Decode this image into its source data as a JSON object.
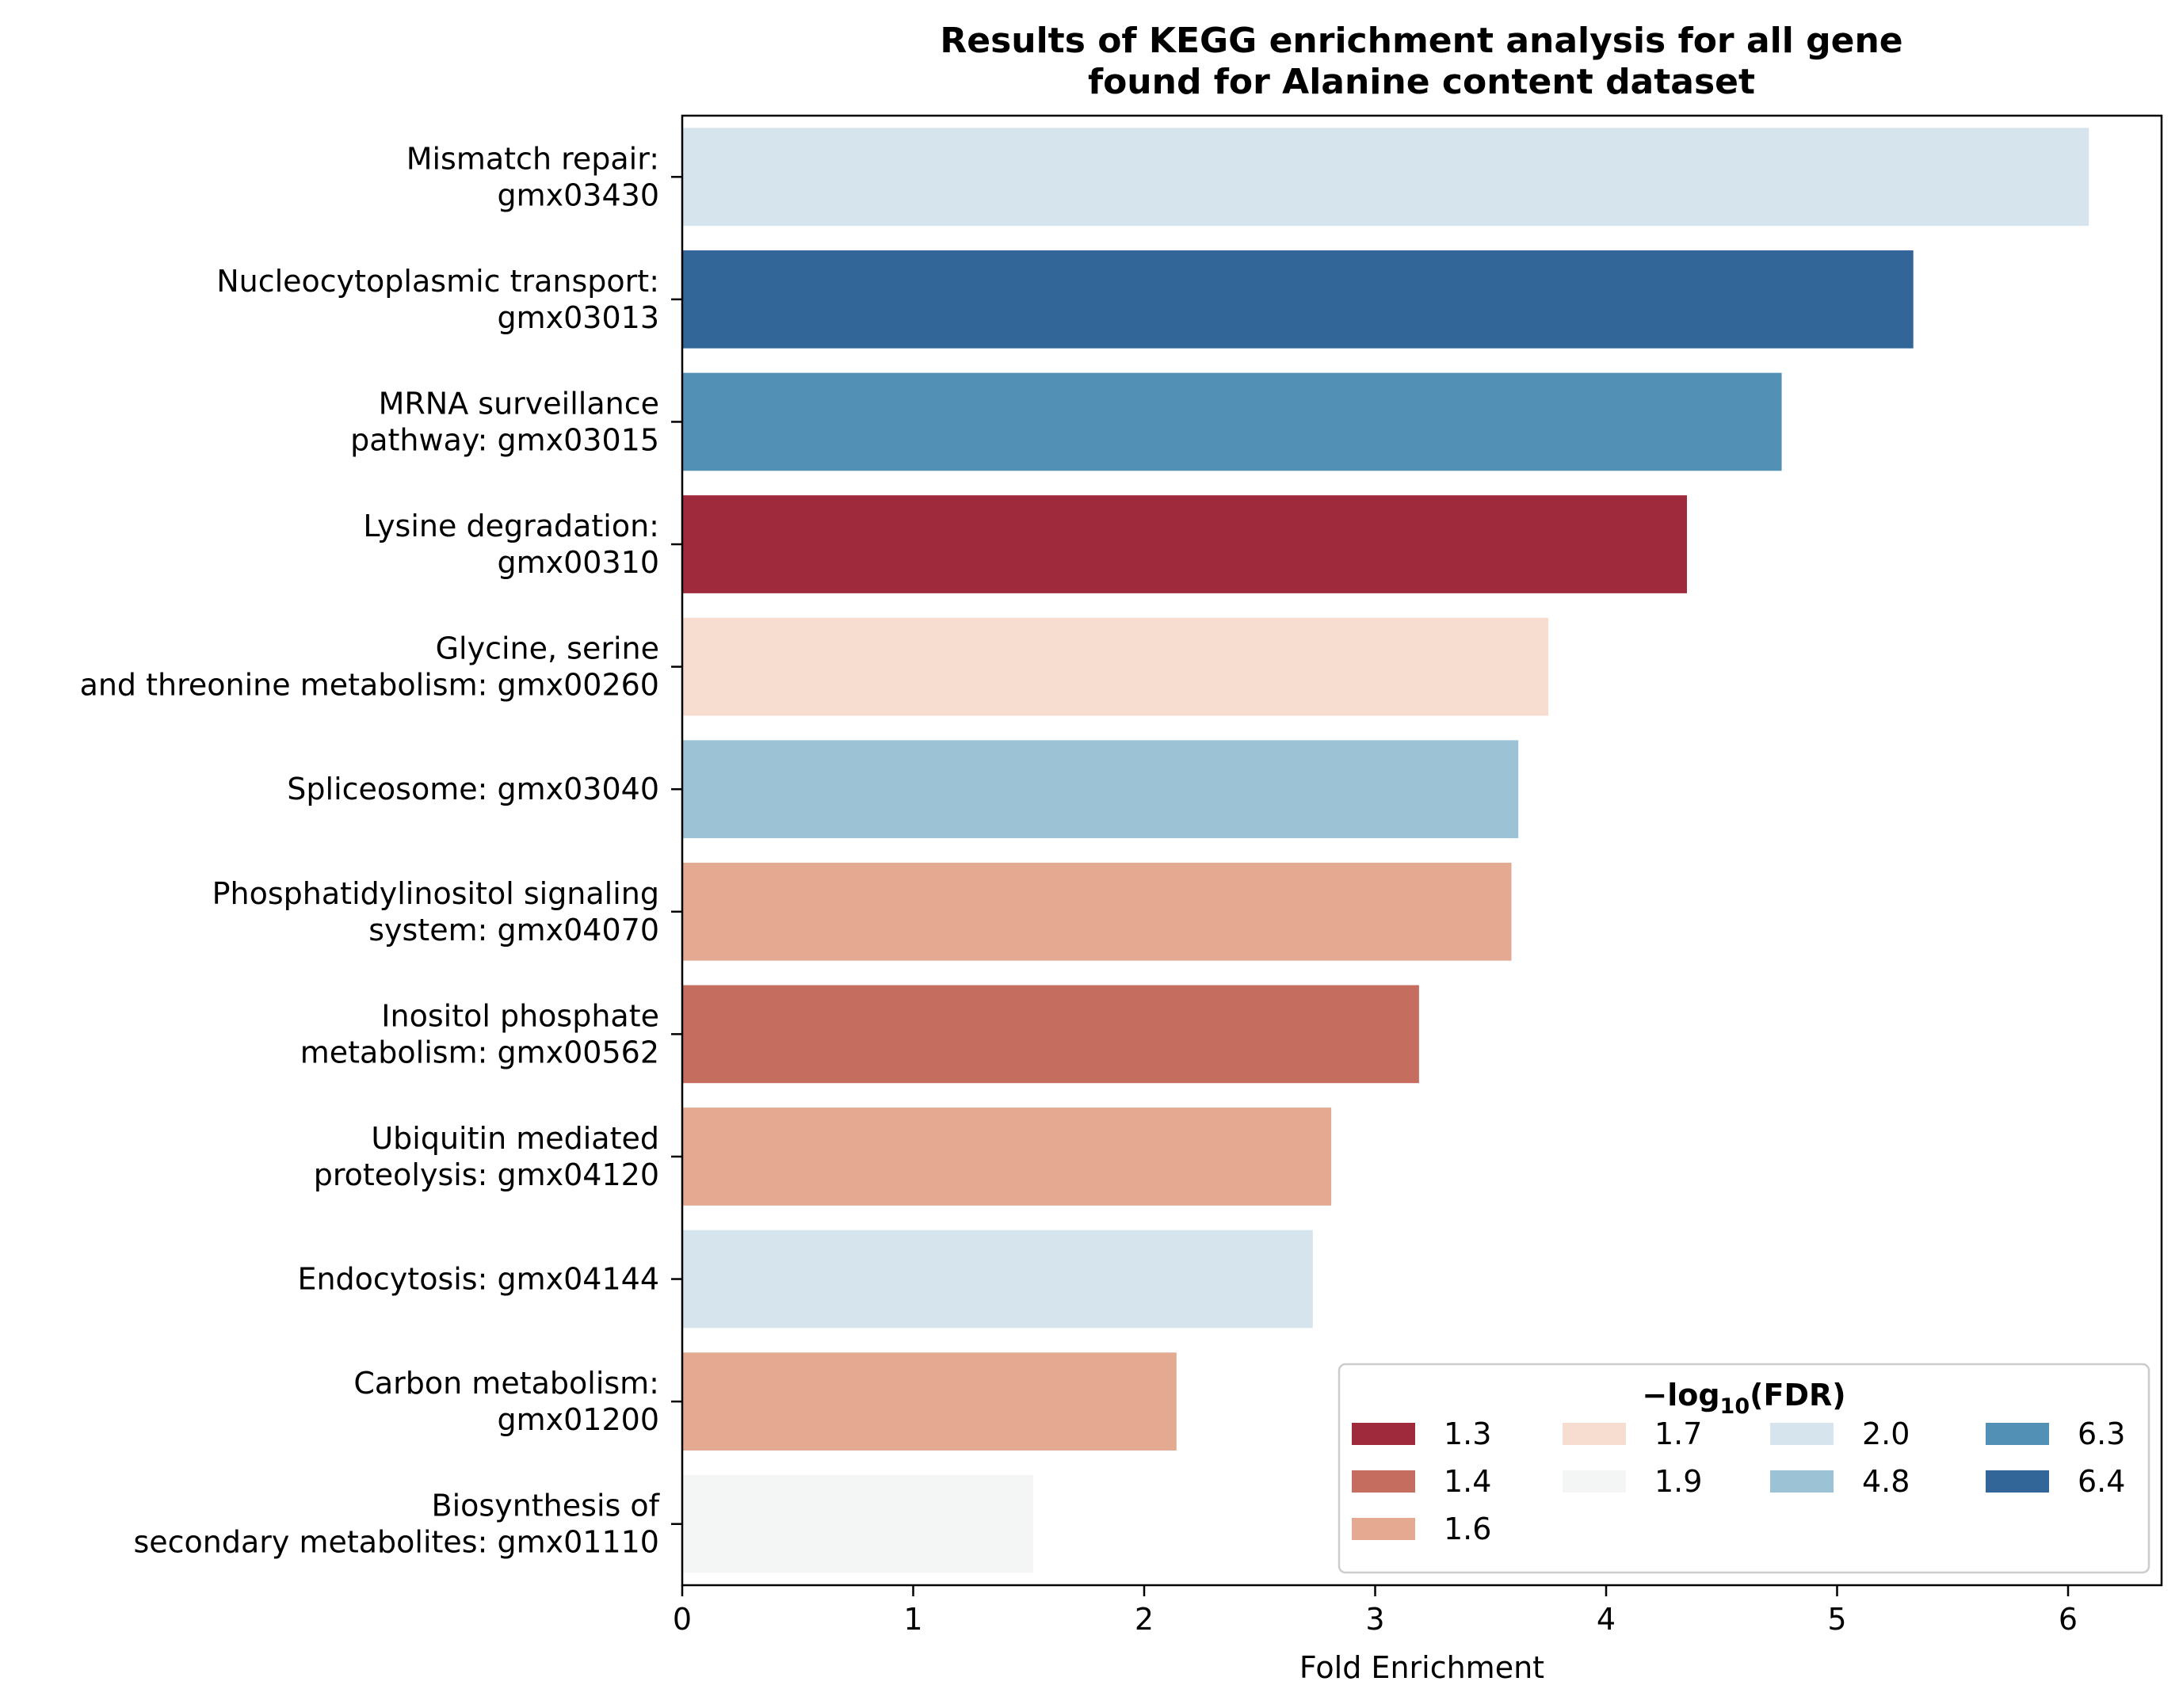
{
  "chart_data": {
    "type": "bar",
    "orientation": "horizontal",
    "title": [
      "Results of KEGG enrichment analysis for all gene",
      "found for Alanine content dataset"
    ],
    "xlabel": "Fold Enrichment",
    "ylabel": "",
    "xlim": [
      0,
      6.4
    ],
    "xticks": [
      "0",
      "1",
      "2",
      "3",
      "4",
      "5",
      "6"
    ],
    "grid": false,
    "categories": [
      [
        "Mismatch repair:",
        "gmx03430"
      ],
      [
        "Nucleocytoplasmic transport:",
        "gmx03013"
      ],
      [
        "MRNA surveillance",
        "pathway: gmx03015"
      ],
      [
        "Lysine degradation:",
        "gmx00310"
      ],
      [
        "Glycine, serine",
        "and threonine metabolism: gmx00260"
      ],
      [
        "Spliceosome: gmx03040"
      ],
      [
        "Phosphatidylinositol signaling",
        "system: gmx04070"
      ],
      [
        "Inositol phosphate",
        "metabolism: gmx00562"
      ],
      [
        "Ubiquitin mediated",
        "proteolysis: gmx04120"
      ],
      [
        "Endocytosis: gmx04144"
      ],
      [
        "Carbon metabolism:",
        "gmx01200"
      ],
      [
        "Biosynthesis of",
        "secondary metabolites: gmx01110"
      ]
    ],
    "values": [
      6.09,
      5.33,
      4.76,
      4.35,
      3.75,
      3.62,
      3.59,
      3.19,
      2.81,
      2.73,
      2.14,
      1.52
    ],
    "neg_log10_fdr": [
      "2.0",
      "6.4",
      "6.3",
      "1.3",
      "1.7",
      "4.8",
      "1.6",
      "1.4",
      "1.6",
      "2.0",
      "1.6",
      "1.9"
    ],
    "legend": {
      "title": "−log",
      "title_sub": "10",
      "title_suffix": "(FDR)",
      "placement": "lower-right",
      "columns": [
        [
          {
            "label": "1.3",
            "color": "#9e2a3b"
          },
          {
            "label": "1.4",
            "color": "#c56d5f"
          },
          {
            "label": "1.6",
            "color": "#e4a991"
          }
        ],
        [
          {
            "label": "1.7",
            "color": "#f6ddd0"
          },
          {
            "label": "1.9",
            "color": "#f4f6f6"
          }
        ],
        [
          {
            "label": "2.0",
            "color": "#d5e4ed"
          },
          {
            "label": "4.8",
            "color": "#9cc2d5"
          }
        ],
        [
          {
            "label": "6.3",
            "color": "#5390b5"
          },
          {
            "label": "6.4",
            "color": "#326699"
          }
        ]
      ]
    },
    "colors": {
      "2.0": "#d5e4ed",
      "6.4": "#326699",
      "6.3": "#5390b5",
      "1.3": "#9e2a3b",
      "1.7": "#f6ddd0",
      "4.8": "#9cc2d5",
      "1.6": "#e4a991",
      "1.4": "#c56d5f",
      "1.9": "#f4f6f6"
    }
  }
}
